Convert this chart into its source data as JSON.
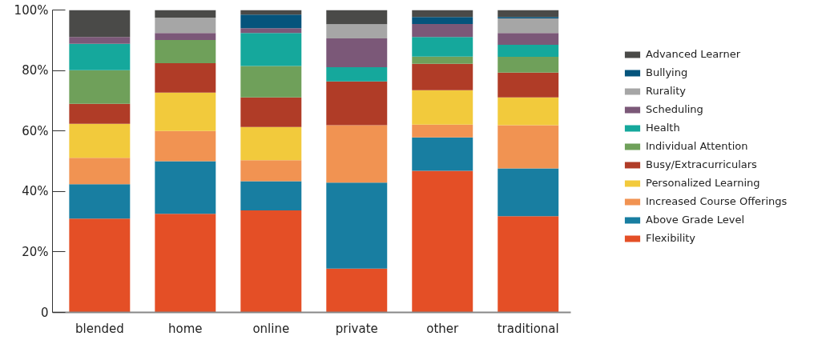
{
  "chart_data": {
    "type": "bar",
    "stacked": true,
    "categories": [
      "blended",
      "home",
      "online",
      "private",
      "other",
      "traditional"
    ],
    "ylim": [
      0,
      100
    ],
    "yticks": [
      0,
      {
        "value": 20,
        "label": "20%"
      },
      {
        "value": 40,
        "label": "40%"
      },
      {
        "value": 60,
        "label": "60%"
      },
      {
        "value": 80,
        "label": "80%"
      },
      {
        "value": 100,
        "label": "100%"
      }
    ],
    "grid": false,
    "legend": "right",
    "series": [
      {
        "name": "Flexibility",
        "color": "#e44f26",
        "values": [
          31.0,
          32.6,
          33.7,
          14.5,
          46.8,
          31.8
        ]
      },
      {
        "name": "Above Grade Level",
        "color": "#187ea1",
        "values": [
          11.4,
          17.4,
          9.7,
          28.4,
          11.1,
          15.8
        ]
      },
      {
        "name": "Increased Course Offerings",
        "color": "#f19352",
        "values": [
          8.7,
          10.0,
          6.9,
          19.0,
          4.2,
          14.3
        ]
      },
      {
        "name": "Personalized Learning",
        "color": "#f2ca3c",
        "values": [
          11.3,
          12.7,
          11.0,
          0,
          11.4,
          9.2
        ]
      },
      {
        "name": "Busy/Extracurriculars",
        "color": "#b03c27",
        "values": [
          6.6,
          9.7,
          9.8,
          14.5,
          8.7,
          8.2
        ]
      },
      {
        "name": "Individual Attention",
        "color": "#6fa05a",
        "values": [
          11.1,
          7.7,
          10.4,
          0,
          2.4,
          5.2
        ]
      },
      {
        "name": "Health",
        "color": "#15a89c",
        "values": [
          8.7,
          0,
          10.9,
          4.7,
          6.5,
          4.0
        ]
      },
      {
        "name": "Scheduling",
        "color": "#7b5878",
        "values": [
          2.3,
          2.3,
          1.6,
          9.5,
          4.3,
          3.9
        ]
      },
      {
        "name": "Rurality",
        "color": "#a6a6a6",
        "values": [
          0,
          5.1,
          0,
          4.7,
          0,
          4.8
        ]
      },
      {
        "name": "Bullying",
        "color": "#05547c",
        "values": [
          0,
          0,
          4.5,
          0,
          2.3,
          0.5
        ]
      },
      {
        "name": "Advanced Learner",
        "color": "#4a4a48",
        "values": [
          8.9,
          2.5,
          1.5,
          4.7,
          2.3,
          2.3
        ]
      }
    ]
  }
}
